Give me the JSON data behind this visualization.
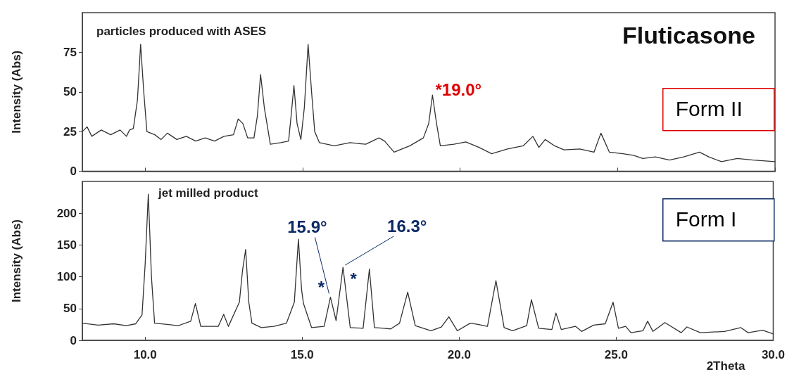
{
  "chart_data": [
    {
      "type": "line",
      "title": "Fluticasone",
      "ylabel": "Intensity (Abs)",
      "annotations": [
        "particles produced with ASES",
        "Form II",
        {
          "text": "*19.0°",
          "x": 19.1,
          "y": 48
        }
      ],
      "series": [
        {
          "color": "#333333",
          "x": [
            8.0,
            8.15,
            8.3,
            8.6,
            8.9,
            9.2,
            9.4,
            9.5,
            9.62,
            9.75,
            9.85,
            9.95,
            10.05,
            10.3,
            10.5,
            10.7,
            11.0,
            11.3,
            11.6,
            11.9,
            12.2,
            12.5,
            12.8,
            12.95,
            13.1,
            13.25,
            13.45,
            13.56,
            13.66,
            13.78,
            13.88,
            13.97,
            14.3,
            14.55,
            14.63,
            14.72,
            14.82,
            14.94,
            15.05,
            15.17,
            15.28,
            15.38,
            15.53,
            16.0,
            16.5,
            17.0,
            17.42,
            17.6,
            17.9,
            18.4,
            18.83,
            19.0,
            19.12,
            19.25,
            19.37,
            19.8,
            20.18,
            20.6,
            21.0,
            21.5,
            22.0,
            22.31,
            22.5,
            22.7,
            23.0,
            23.3,
            23.8,
            24.25,
            24.47,
            24.74,
            25.17,
            25.5,
            25.8,
            26.2,
            26.65,
            27.1,
            27.6,
            27.9,
            28.3,
            28.8,
            29.3,
            30.0
          ],
          "values": [
            25,
            28,
            22,
            26,
            23,
            26,
            22,
            26,
            27,
            45,
            80,
            50,
            25,
            23,
            20,
            24,
            20,
            22,
            19,
            21,
            19,
            22,
            23,
            33,
            30,
            21,
            21,
            35,
            61,
            40,
            28,
            17,
            18,
            19,
            35,
            54,
            30,
            20,
            40,
            80,
            50,
            25,
            18,
            16,
            18,
            17,
            21,
            19,
            12,
            16,
            21,
            30,
            48,
            30,
            16,
            17,
            18.5,
            15,
            11,
            14,
            16,
            22,
            15,
            20,
            16,
            13.5,
            14,
            12,
            24,
            12,
            11,
            10,
            8,
            9,
            7,
            9,
            12,
            9,
            6,
            8,
            7,
            6
          ]
        }
      ],
      "xlim": [
        8,
        30
      ],
      "ylim": [
        0,
        100
      ],
      "xticks": [
        10,
        15,
        20,
        25,
        30
      ],
      "yticks": [
        0,
        25,
        50,
        75
      ],
      "tick_labels": "y",
      "grid": false,
      "marker": "none",
      "line_style": "solid"
    },
    {
      "type": "line",
      "xlabel": "2Theta",
      "ylabel": "Intensity (Abs)",
      "annotations": [
        "jet milled product",
        "Form I",
        {
          "text": "15.9°",
          "x": 15.9,
          "y": 68
        },
        {
          "text": "16.3°",
          "x": 16.3,
          "y": 115
        },
        "*",
        "*"
      ],
      "series": [
        {
          "color": "#333333",
          "x": [
            8.0,
            8.5,
            9.0,
            9.4,
            9.7,
            9.9,
            10.0,
            10.1,
            10.2,
            10.3,
            10.7,
            11.05,
            11.45,
            11.6,
            11.77,
            12.0,
            12.33,
            12.5,
            12.65,
            13.0,
            13.1,
            13.2,
            13.3,
            13.4,
            13.7,
            14.1,
            14.5,
            14.75,
            14.88,
            14.98,
            15.04,
            15.3,
            15.7,
            15.9,
            16.08,
            16.3,
            16.53,
            16.94,
            17.14,
            17.3,
            17.6,
            17.82,
            18.1,
            18.36,
            18.6,
            19.1,
            19.43,
            19.67,
            19.94,
            20.35,
            20.6,
            20.9,
            21.17,
            21.43,
            21.7,
            22.15,
            22.3,
            22.53,
            22.95,
            23.08,
            23.25,
            23.7,
            23.9,
            24.28,
            24.65,
            24.9,
            25.07,
            25.3,
            25.47,
            25.85,
            26.0,
            26.17,
            26.55,
            27.07,
            27.25,
            27.68,
            28.45,
            28.97,
            29.2,
            29.66,
            30.0
          ],
          "values": [
            27,
            24,
            26,
            23,
            26,
            40,
            120,
            230,
            100,
            27,
            25,
            23,
            30,
            58,
            22,
            22,
            22,
            41,
            22,
            60,
            110,
            143,
            60,
            27,
            20,
            22,
            27,
            60,
            159,
            80,
            58,
            20,
            22,
            68,
            31,
            115,
            20,
            19,
            112,
            20,
            19,
            18,
            27,
            76,
            23,
            15,
            21,
            37,
            15,
            27,
            25,
            22,
            94,
            20,
            15,
            23,
            64,
            19,
            17,
            43,
            17,
            22,
            14,
            24,
            26,
            60,
            19,
            22,
            12,
            15,
            30,
            14,
            28,
            12,
            21,
            12,
            14,
            20,
            12,
            16,
            10
          ]
        }
      ],
      "xlim": [
        8,
        30
      ],
      "ylim": [
        0,
        250
      ],
      "xticks": [
        {
          "value": 10,
          "label": "10.0"
        },
        {
          "value": 15,
          "label": "15.0"
        },
        {
          "value": 20,
          "label": "20.0"
        },
        {
          "value": 25,
          "label": "25.0"
        },
        {
          "value": 30,
          "label": "30.0"
        }
      ],
      "yticks": [
        0,
        50,
        100,
        150,
        200
      ],
      "grid": false,
      "marker": "none",
      "line_style": "solid"
    }
  ]
}
